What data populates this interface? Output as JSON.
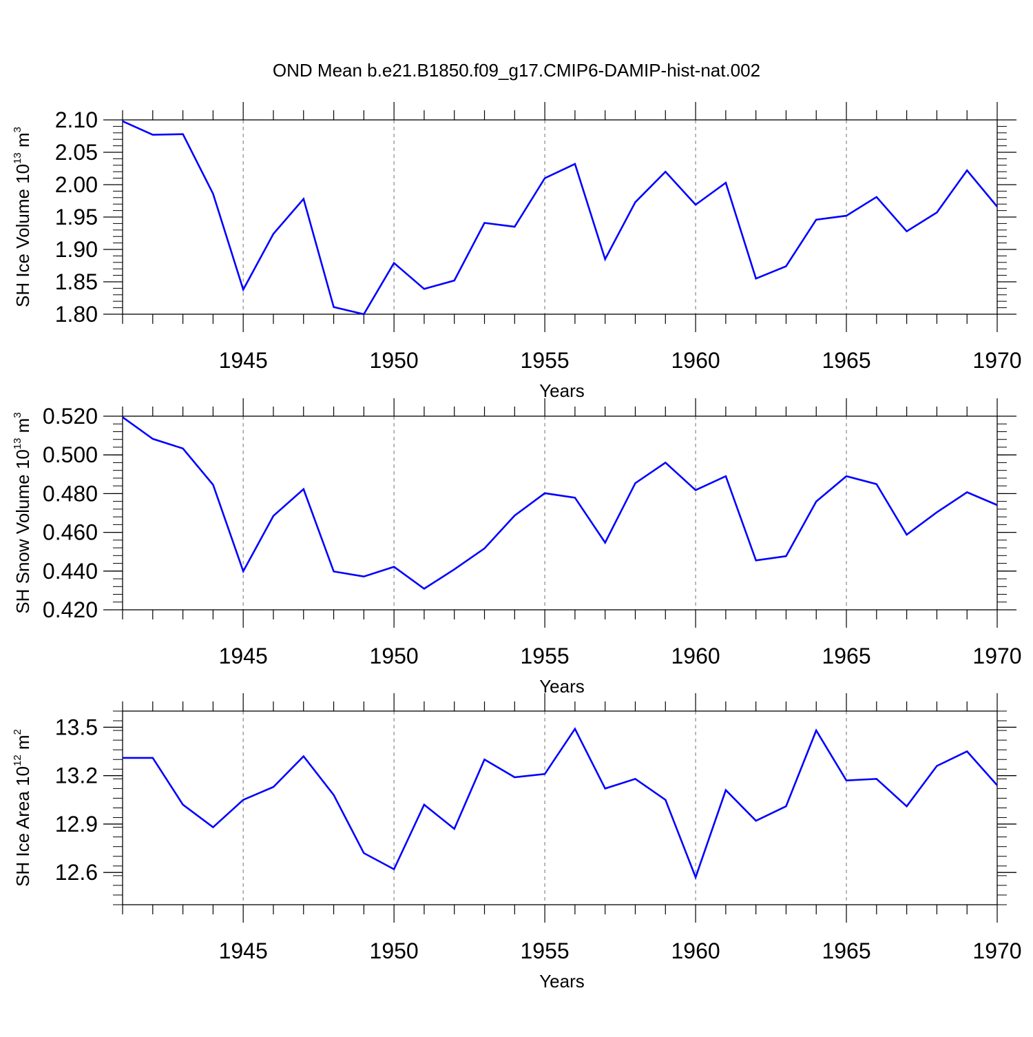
{
  "title": "OND Mean b.e21.B1850.f09_g17.CMIP6-DAMIP-hist-nat.002",
  "line_color": "#0000ff",
  "chart_data": [
    {
      "type": "line",
      "ylabel": {
        "main": "SH Ice Volume 10",
        "sup": "13",
        "mid": " m",
        "sup2": "3"
      },
      "xlabel": "Years",
      "xlim": [
        1941,
        1970
      ],
      "ylim": [
        1.8,
        2.1
      ],
      "xticks": [
        1945,
        1950,
        1955,
        1960,
        1965,
        1970
      ],
      "xtick_labels": [
        "1945",
        "1950",
        "1955",
        "1960",
        "1965",
        "1970"
      ],
      "yticks": [
        1.8,
        1.85,
        1.9,
        1.95,
        2.0,
        2.05,
        2.1
      ],
      "ytick_labels": [
        "1.80",
        "1.85",
        "1.90",
        "1.95",
        "2.00",
        "2.05",
        "2.10"
      ],
      "yminor_step": 0.01,
      "x": [
        1941,
        1942,
        1943,
        1944,
        1945,
        1946,
        1947,
        1948,
        1949,
        1950,
        1951,
        1952,
        1953,
        1954,
        1955,
        1956,
        1957,
        1958,
        1959,
        1960,
        1961,
        1962,
        1963,
        1964,
        1965,
        1966,
        1967,
        1968,
        1969,
        1970
      ],
      "values": [
        2.098,
        2.077,
        2.078,
        1.986,
        1.838,
        1.924,
        1.978,
        1.811,
        1.8,
        1.879,
        1.839,
        1.852,
        1.941,
        1.935,
        2.01,
        2.032,
        1.885,
        1.973,
        2.02,
        1.969,
        2.003,
        1.855,
        1.874,
        1.946,
        1.952,
        1.981,
        1.928,
        1.957,
        2.022,
        1.966
      ]
    },
    {
      "type": "line",
      "ylabel": {
        "main": "SH Snow Volume 10",
        "sup": "13",
        "mid": " m",
        "sup2": "3"
      },
      "xlabel": "Years",
      "xlim": [
        1941,
        1970
      ],
      "ylim": [
        0.42,
        0.52
      ],
      "xticks": [
        1945,
        1950,
        1955,
        1960,
        1965,
        1970
      ],
      "xtick_labels": [
        "1945",
        "1950",
        "1955",
        "1960",
        "1965",
        "1970"
      ],
      "yticks": [
        0.42,
        0.44,
        0.46,
        0.48,
        0.5,
        0.52
      ],
      "ytick_labels": [
        "0.420",
        "0.440",
        "0.460",
        "0.480",
        "0.500",
        "0.520"
      ],
      "yminor_step": 0.004,
      "x": [
        1941,
        1942,
        1943,
        1944,
        1945,
        1946,
        1947,
        1948,
        1949,
        1950,
        1951,
        1952,
        1953,
        1954,
        1955,
        1956,
        1957,
        1958,
        1959,
        1960,
        1961,
        1962,
        1963,
        1964,
        1965,
        1966,
        1967,
        1968,
        1969,
        1970
      ],
      "values": [
        0.5195,
        0.5083,
        0.5033,
        0.4846,
        0.4399,
        0.4685,
        0.4823,
        0.4398,
        0.4372,
        0.4422,
        0.4309,
        0.4409,
        0.4517,
        0.4687,
        0.4802,
        0.4779,
        0.4547,
        0.4854,
        0.496,
        0.4818,
        0.489,
        0.4455,
        0.4477,
        0.4759,
        0.489,
        0.4849,
        0.4588,
        0.4704,
        0.4807,
        0.4741
      ]
    },
    {
      "type": "line",
      "ylabel": {
        "main": "SH Ice Area 10",
        "sup": "12",
        "mid": " m",
        "sup2": "2"
      },
      "xlabel": "Years",
      "xlim": [
        1941,
        1970
      ],
      "ylim": [
        12.4,
        13.6
      ],
      "xticks": [
        1945,
        1950,
        1955,
        1960,
        1965,
        1970
      ],
      "xtick_labels": [
        "1945",
        "1950",
        "1955",
        "1960",
        "1965",
        "1970"
      ],
      "yticks": [
        12.6,
        12.9,
        13.2,
        13.5
      ],
      "ytick_labels": [
        "12.6",
        "12.9",
        "13.2",
        "13.5"
      ],
      "yminor_step": 0.06,
      "x": [
        1941,
        1942,
        1943,
        1944,
        1945,
        1946,
        1947,
        1948,
        1949,
        1950,
        1951,
        1952,
        1953,
        1954,
        1955,
        1956,
        1957,
        1958,
        1959,
        1960,
        1961,
        1962,
        1963,
        1964,
        1965,
        1966,
        1967,
        1968,
        1969,
        1970
      ],
      "values": [
        13.31,
        13.31,
        13.02,
        12.88,
        13.05,
        13.13,
        13.32,
        13.08,
        12.72,
        12.62,
        13.02,
        12.87,
        13.3,
        13.19,
        13.21,
        13.49,
        13.12,
        13.18,
        13.05,
        12.57,
        13.11,
        12.92,
        13.01,
        13.48,
        13.17,
        13.18,
        13.01,
        13.26,
        13.35,
        13.14
      ]
    }
  ]
}
